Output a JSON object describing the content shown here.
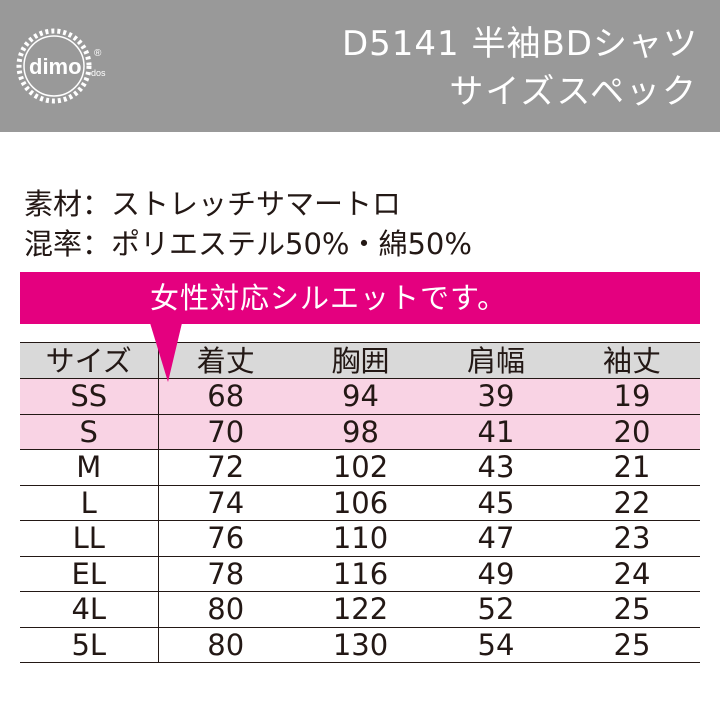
{
  "header": {
    "brand": "dimo",
    "brand_mark": "®",
    "brand_sub": "dos",
    "title_line1": "D5141 半袖BDシャツ",
    "title_line2": "サイズスペック"
  },
  "spec": {
    "material": "素材：ストレッチサマートロ",
    "blend": "混率：ポリエステル50%・綿50%"
  },
  "banner": {
    "text": "女性対応シルエットです。"
  },
  "table": {
    "headers": [
      "サイズ",
      "着丈",
      "胸囲",
      "肩幅",
      "袖丈"
    ],
    "rows": [
      {
        "size": "SS",
        "length": "68",
        "chest": "94",
        "shoulder": "39",
        "sleeve": "19"
      },
      {
        "size": "S",
        "length": "70",
        "chest": "98",
        "shoulder": "41",
        "sleeve": "20"
      },
      {
        "size": "M",
        "length": "72",
        "chest": "102",
        "shoulder": "43",
        "sleeve": "21"
      },
      {
        "size": "L",
        "length": "74",
        "chest": "106",
        "shoulder": "45",
        "sleeve": "22"
      },
      {
        "size": "LL",
        "length": "76",
        "chest": "110",
        "shoulder": "47",
        "sleeve": "23"
      },
      {
        "size": "EL",
        "length": "78",
        "chest": "116",
        "shoulder": "49",
        "sleeve": "24"
      },
      {
        "size": "4L",
        "length": "80",
        "chest": "122",
        "shoulder": "52",
        "sleeve": "25"
      },
      {
        "size": "5L",
        "length": "80",
        "chest": "130",
        "shoulder": "54",
        "sleeve": "25"
      }
    ]
  },
  "colors": {
    "header_bg": "#999999",
    "accent": "#e4007f",
    "highlight_row": "#f9d3e4",
    "table_header_bg": "#d9d9d9"
  }
}
